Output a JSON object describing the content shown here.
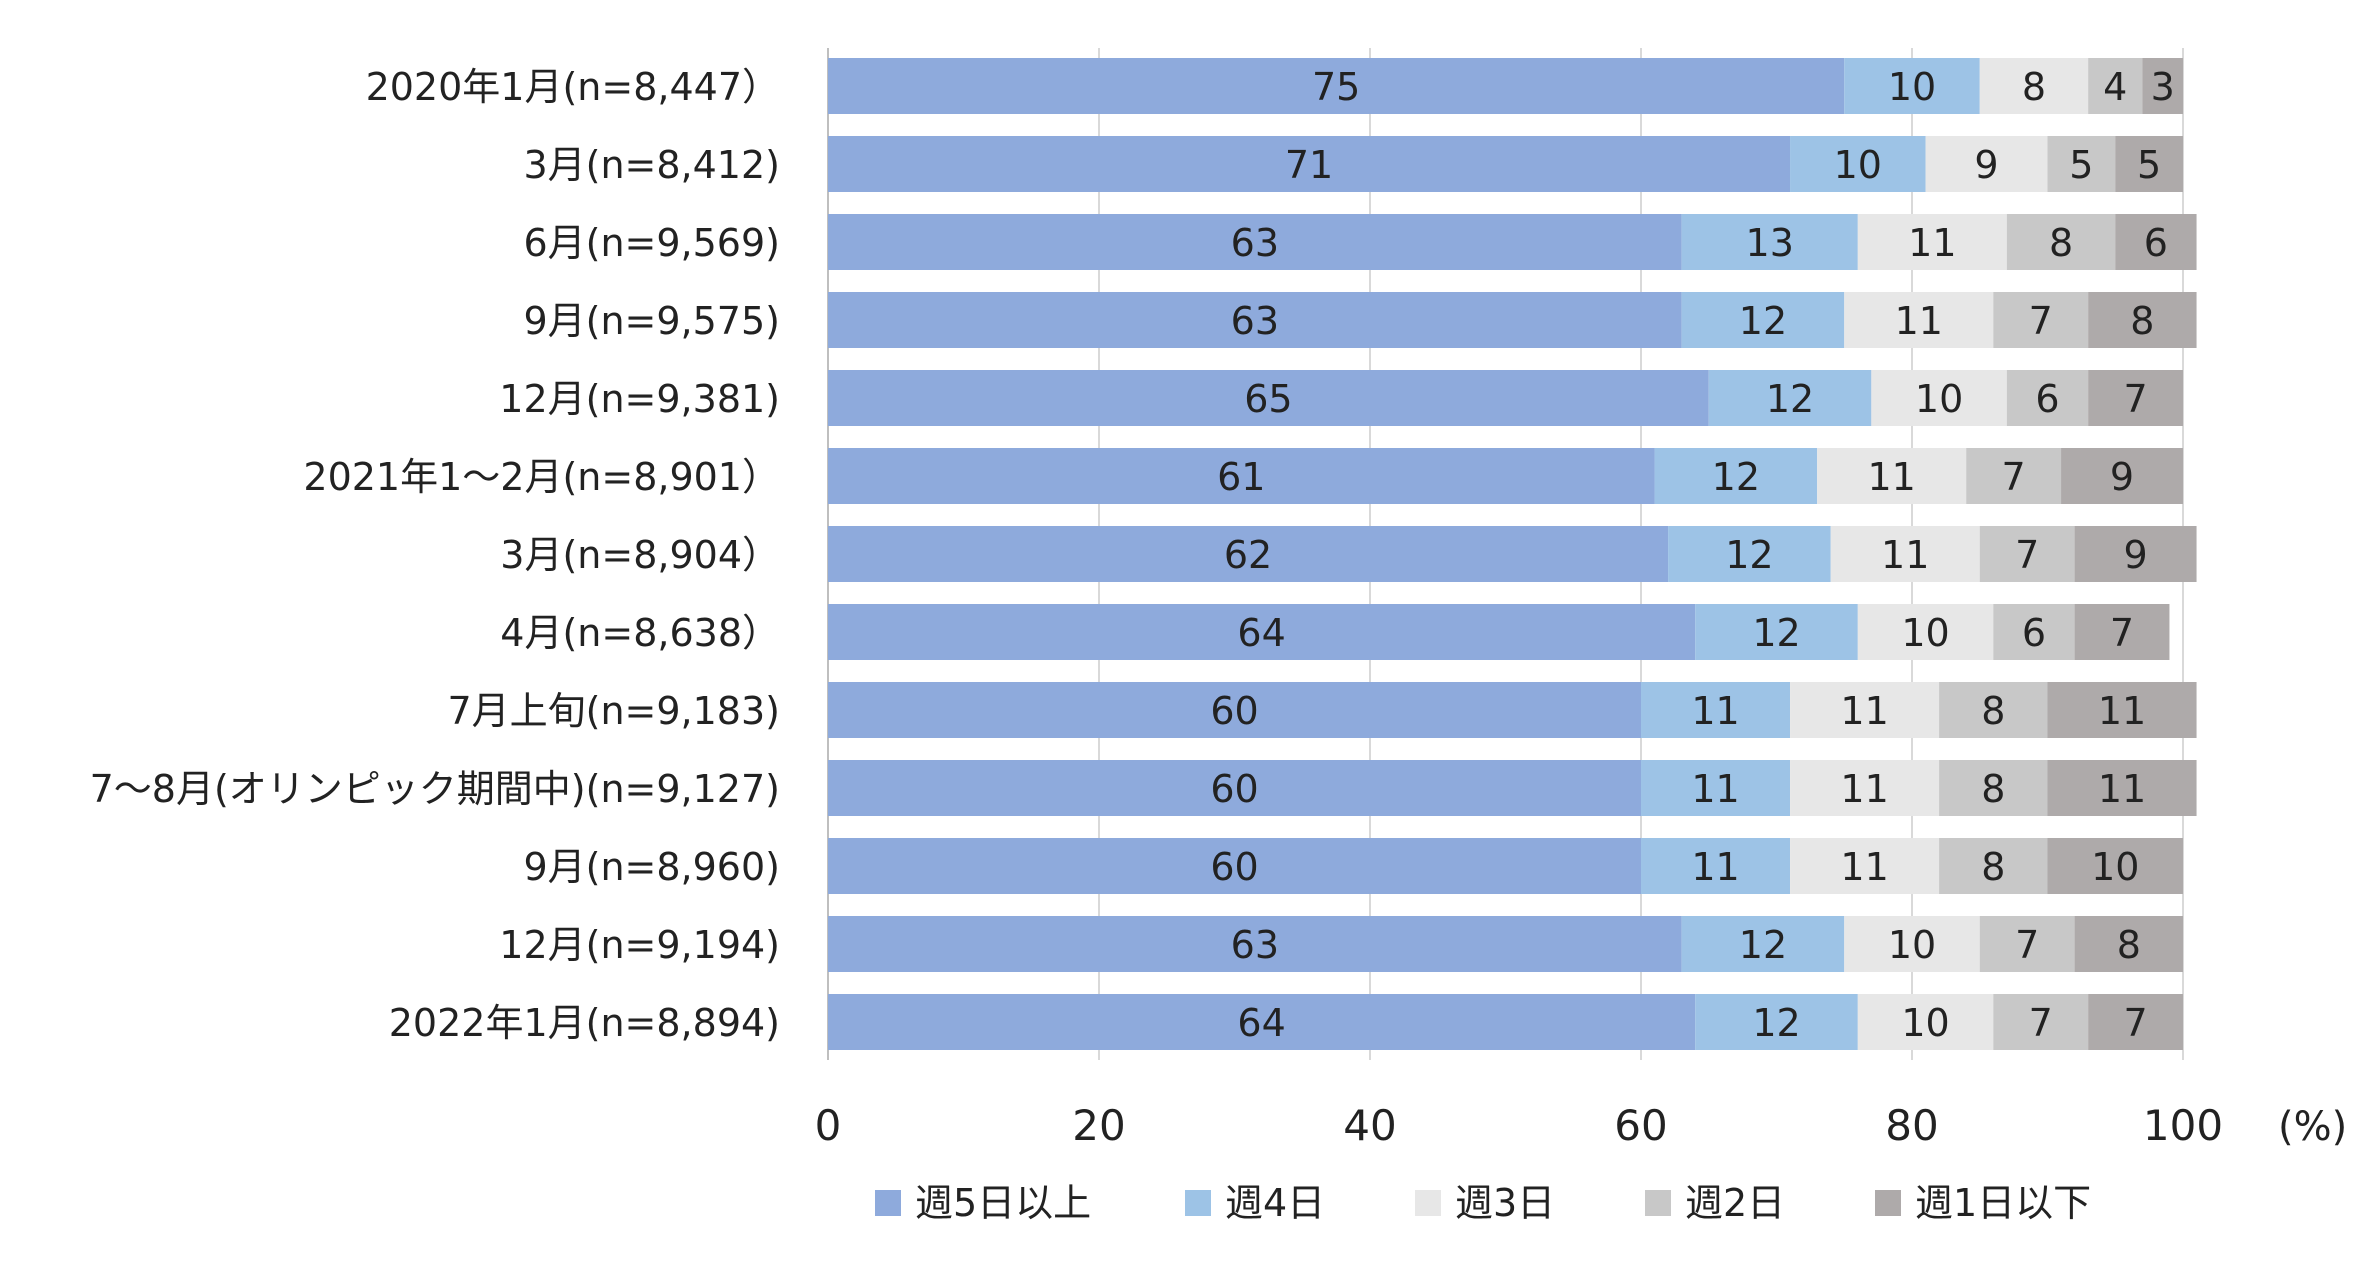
{
  "chart_data": {
    "type": "bar",
    "orientation": "horizontal",
    "stacked": true,
    "categories": [
      "2020年1月(n=8,447）",
      "3月(n=8,412)",
      "6月(n=9,569)",
      "9月(n=9,575)",
      "12月(n=9,381)",
      "2021年1～2月(n=8,901）",
      "3月(n=8,904）",
      "4月(n=8,638）",
      "7月上旬(n=9,183)",
      "7～8月(オリンピック期間中)(n=9,127)",
      "9月(n=8,960)",
      "12月(n=9,194)",
      "2022年1月(n=8,894)"
    ],
    "series": [
      {
        "name": "週5日以上",
        "color": "#8eaadc",
        "values": [
          75,
          71,
          63,
          63,
          65,
          61,
          62,
          64,
          60,
          60,
          60,
          63,
          64
        ]
      },
      {
        "name": "週4日",
        "color": "#9dc3e6",
        "values": [
          10,
          10,
          13,
          12,
          12,
          12,
          12,
          12,
          11,
          11,
          11,
          12,
          12
        ]
      },
      {
        "name": "週3日",
        "color": "#e7e7e7",
        "values": [
          8,
          9,
          11,
          11,
          10,
          11,
          11,
          10,
          11,
          11,
          11,
          10,
          10
        ]
      },
      {
        "name": "週2日",
        "color": "#c8c8c8",
        "values": [
          4,
          5,
          8,
          7,
          6,
          7,
          7,
          6,
          8,
          8,
          8,
          7,
          7
        ]
      },
      {
        "name": "週1日以下",
        "color": "#aeaaaa",
        "values": [
          3,
          5,
          6,
          8,
          7,
          9,
          9,
          7,
          11,
          11,
          10,
          8,
          7
        ]
      }
    ],
    "xlim": [
      0,
      100
    ],
    "xticks": [
      "0",
      "20",
      "40",
      "60",
      "80",
      "100"
    ],
    "unit_label": "(%)",
    "grid": true,
    "legend": "bottom"
  }
}
